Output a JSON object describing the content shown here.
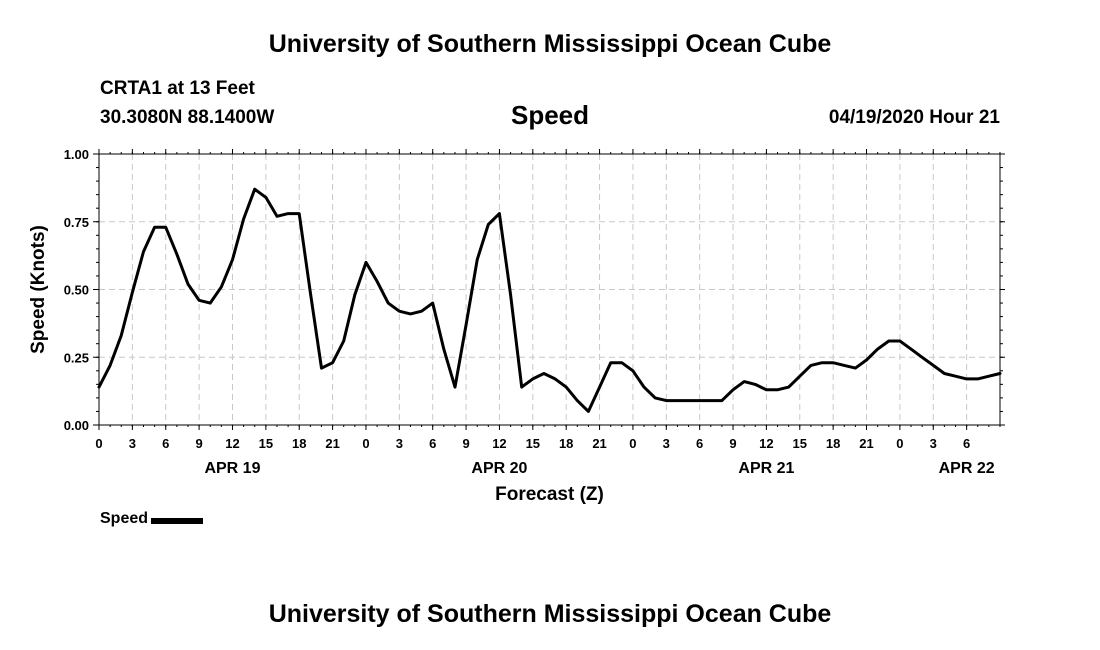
{
  "header": {
    "title": "University of Southern Mississippi Ocean Cube",
    "station": "CRTA1 at 13 Feet",
    "coordinates": "30.3080N 88.1400W",
    "variable": "Speed",
    "datetime": "04/19/2020 Hour 21"
  },
  "footer": {
    "title": "University of Southern Mississippi Ocean Cube"
  },
  "legend": {
    "label": "Speed"
  },
  "chart_data": {
    "type": "line",
    "title": "Speed",
    "xlabel": "Forecast (Z)",
    "ylabel": "Speed (Knots)",
    "ylim": [
      0,
      1
    ],
    "xlim_hours": [
      0,
      81
    ],
    "y_ticks": [
      "0.00",
      "0.25",
      "0.50",
      "0.75",
      "1.00"
    ],
    "x_tick_labels": [
      "0",
      "3",
      "6",
      "9",
      "12",
      "15",
      "18",
      "21",
      "0",
      "3",
      "6",
      "9",
      "12",
      "15",
      "18",
      "21",
      "0",
      "3",
      "6",
      "9",
      "12",
      "15",
      "18",
      "21",
      "0",
      "3",
      "6"
    ],
    "date_labels": [
      {
        "label": "APR 19",
        "hour": 12
      },
      {
        "label": "APR 20",
        "hour": 36
      },
      {
        "label": "APR 21",
        "hour": 60
      },
      {
        "label": "APR 22",
        "hour": 78
      }
    ],
    "grid": true,
    "series": [
      {
        "name": "Speed",
        "x": [
          0,
          1,
          2,
          3,
          4,
          5,
          6,
          7,
          8,
          9,
          10,
          11,
          12,
          13,
          14,
          15,
          16,
          17,
          18,
          19,
          20,
          21,
          22,
          23,
          24,
          25,
          26,
          27,
          28,
          29,
          30,
          31,
          32,
          33,
          34,
          35,
          36,
          37,
          38,
          39,
          40,
          41,
          42,
          43,
          44,
          45,
          46,
          47,
          48,
          49,
          50,
          51,
          52,
          53,
          54,
          55,
          56,
          57,
          58,
          59,
          60,
          61,
          62,
          63,
          64,
          65,
          66,
          67,
          68,
          69,
          70,
          71,
          72,
          73,
          74,
          75,
          76,
          77,
          78,
          79,
          80,
          81
        ],
        "values": [
          0.14,
          0.22,
          0.33,
          0.49,
          0.64,
          0.73,
          0.73,
          0.63,
          0.52,
          0.46,
          0.45,
          0.51,
          0.61,
          0.76,
          0.87,
          0.84,
          0.77,
          0.78,
          0.78,
          0.49,
          0.21,
          0.23,
          0.31,
          0.48,
          0.6,
          0.53,
          0.45,
          0.42,
          0.41,
          0.42,
          0.45,
          0.28,
          0.14,
          0.37,
          0.61,
          0.74,
          0.78,
          0.48,
          0.14,
          0.17,
          0.19,
          0.17,
          0.14,
          0.09,
          0.05,
          0.14,
          0.23,
          0.23,
          0.2,
          0.14,
          0.1,
          0.09,
          0.09,
          0.09,
          0.09,
          0.09,
          0.09,
          0.13,
          0.16,
          0.15,
          0.13,
          0.13,
          0.14,
          0.18,
          0.22,
          0.23,
          0.23,
          0.22,
          0.21,
          0.24,
          0.28,
          0.31,
          0.31,
          0.28,
          0.25,
          0.22,
          0.19,
          0.18,
          0.17,
          0.17,
          0.18,
          0.19
        ]
      }
    ]
  }
}
